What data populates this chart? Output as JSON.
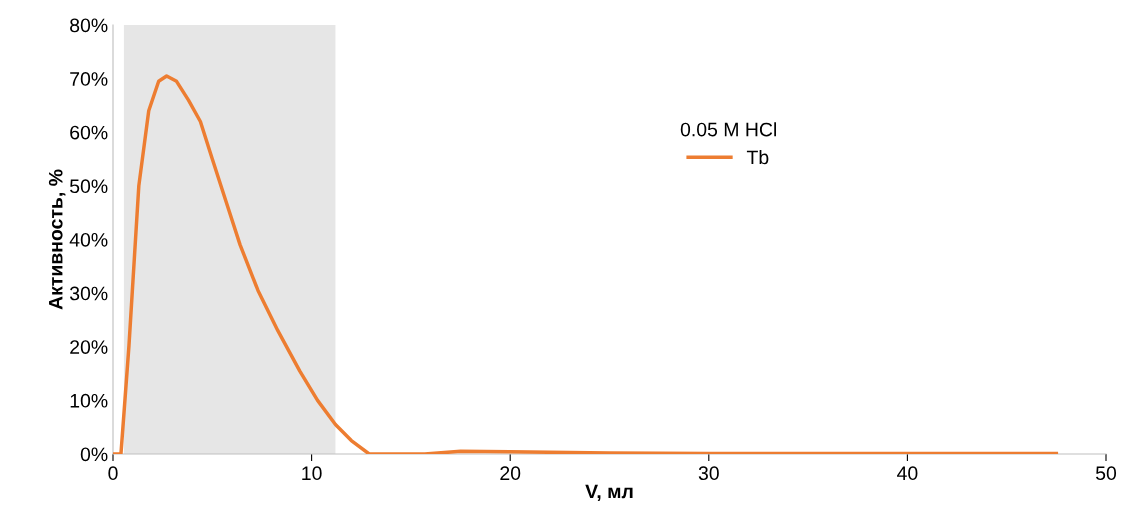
{
  "chart_data": {
    "type": "line",
    "xlabel": "V, мл",
    "ylabel": "Активность, %",
    "legend_title": "0.05 M HCl",
    "series": [
      {
        "name": "Tb",
        "color": "#ed7d31",
        "x": [
          0,
          0.4,
          0.8,
          1.3,
          1.8,
          2.3,
          2.7,
          3.2,
          3.8,
          4.4,
          5.0,
          5.7,
          6.4,
          7.3,
          8.3,
          9.4,
          10.3,
          11.2,
          12.0,
          12.9,
          14.0,
          15.7,
          17.5,
          20,
          25,
          30,
          35,
          40,
          47.5
        ],
        "values": [
          0,
          0,
          20,
          50,
          64,
          69.5,
          70.5,
          69.5,
          66,
          62,
          55,
          47,
          39,
          30.5,
          23,
          15.5,
          10,
          5.5,
          2.5,
          0,
          0,
          0,
          0.5,
          0.4,
          0.2,
          0.1,
          0.1,
          0.1,
          0.1
        ]
      }
    ],
    "bands": [
      {
        "axis": "x",
        "from": 0.55,
        "to": 11.2,
        "color": "#e6e6e6"
      }
    ],
    "xlim": [
      0,
      50
    ],
    "xticks": [
      0,
      10,
      20,
      30,
      40,
      50
    ],
    "ylim": [
      0,
      80
    ],
    "yticks": [
      {
        "value": 0,
        "label": "0%"
      },
      {
        "value": 10,
        "label": "10%"
      },
      {
        "value": 20,
        "label": "20%"
      },
      {
        "value": 30,
        "label": "30%"
      },
      {
        "value": 40,
        "label": "40%"
      },
      {
        "value": 50,
        "label": "50%"
      },
      {
        "value": 60,
        "label": "60%"
      },
      {
        "value": 70,
        "label": "70%"
      },
      {
        "value": 80,
        "label": "80%"
      }
    ],
    "grid": false,
    "legend": "center",
    "marker": "none",
    "line_style": "solid"
  }
}
